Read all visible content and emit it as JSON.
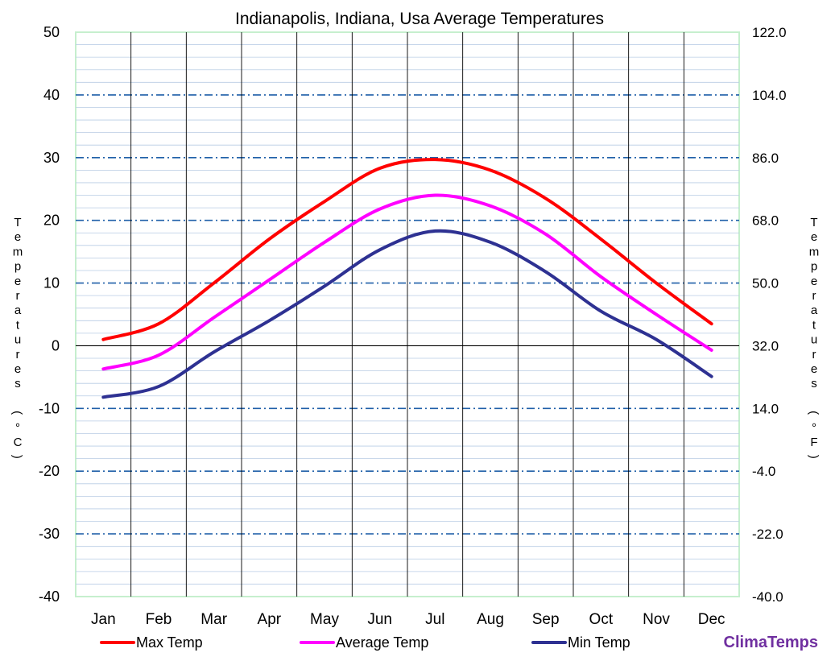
{
  "chart_data": {
    "type": "line",
    "title": "Indianapolis, Indiana, Usa Average Temperatures",
    "categories": [
      "Jan",
      "Feb",
      "Mar",
      "Apr",
      "May",
      "Jun",
      "Jul",
      "Aug",
      "Sep",
      "Oct",
      "Nov",
      "Dec"
    ],
    "series": [
      {
        "name": "Max Temp",
        "color": "#ff0000",
        "values": [
          1.0,
          3.5,
          10.0,
          17.0,
          23.0,
          28.3,
          29.7,
          28.0,
          23.5,
          17.0,
          10.0,
          3.5
        ]
      },
      {
        "name": "Average Temp",
        "color": "#ff00ff",
        "values": [
          -3.7,
          -1.5,
          4.5,
          10.5,
          16.5,
          21.8,
          24.0,
          22.3,
          17.8,
          11.0,
          5.0,
          -0.7
        ]
      },
      {
        "name": "Min Temp",
        "color": "#2e3192",
        "values": [
          -8.2,
          -6.5,
          -1.0,
          4.0,
          9.5,
          15.3,
          18.3,
          16.5,
          11.8,
          5.5,
          1.0,
          -4.9
        ]
      }
    ],
    "ylabel_left": "Temperatures (°C)",
    "ylabel_right": "Temperatures (°F)",
    "ylim": [
      -40,
      50
    ],
    "y_ticks_left": [
      "50",
      "40",
      "30",
      "20",
      "10",
      "0",
      "-10",
      "-20",
      "-30",
      "-40"
    ],
    "y_ticks_right": [
      "122.0",
      "104.0",
      "86.0",
      "68.0",
      "50.0",
      "32.0",
      "14.0",
      "-4.0",
      "-22.0",
      "-40.0"
    ],
    "grid": true,
    "legend_position": "bottom"
  },
  "branding": {
    "text": "ClimaTemps",
    "color": "#7030a0"
  }
}
